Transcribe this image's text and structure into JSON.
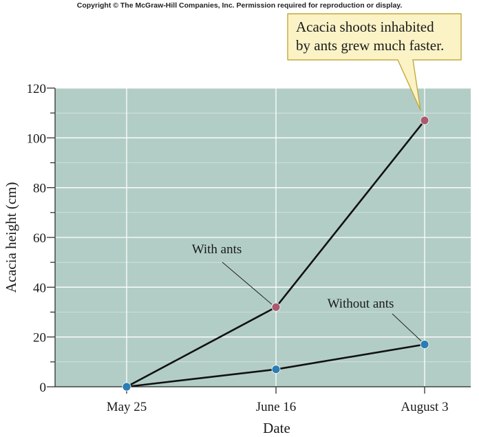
{
  "copyright": "Copyright © The McGraw-Hill Companies, Inc. Permission required for reproduction or display.",
  "chart_data": {
    "type": "line",
    "title": "",
    "xlabel": "Date",
    "ylabel": "Acacia height  (cm)",
    "categories": [
      "May 25",
      "June 16",
      "August 3"
    ],
    "ylim": [
      0,
      120
    ],
    "yticks": [
      "0",
      "20",
      "40",
      "60",
      "80",
      "100",
      "120"
    ],
    "grid": true,
    "series": [
      {
        "name": "With ants",
        "values": [
          0,
          32,
          107
        ],
        "color": "#a85a70"
      },
      {
        "name": "Without ants",
        "values": [
          0,
          7,
          17
        ],
        "color": "#2a7db5"
      }
    ],
    "callout": {
      "lines": [
        "Acacia shoots inhabited",
        "by ants grew much faster."
      ]
    },
    "colors": {
      "plot_background": "#b2cdc5",
      "gridline": "#ffffff",
      "callout_fill": "#fbf3c6",
      "callout_border": "#c2a93a",
      "line": "#111111"
    }
  }
}
